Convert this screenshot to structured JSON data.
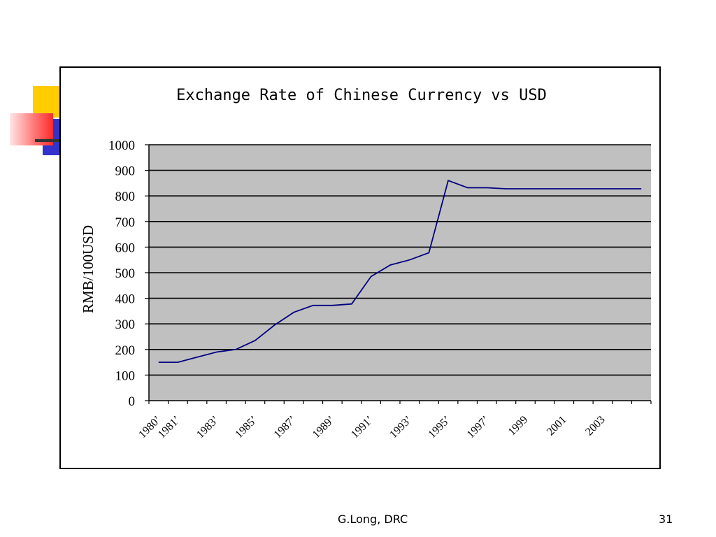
{
  "slide": {
    "footer": "G.Long, DRC",
    "page_number": "31",
    "accent_colors": {
      "yellow": "#FFCC00",
      "blue": "#3333CC",
      "red": "#FF3333"
    }
  },
  "chart_data": {
    "type": "line",
    "title": "Exchange Rate of Chinese Currency vs USD",
    "ylabel": "RMB/100USD",
    "xlabel": "",
    "ylim": [
      0,
      1000
    ],
    "yticks": [
      "0",
      "100",
      "200",
      "300",
      "400",
      "500",
      "600",
      "700",
      "800",
      "900",
      "1000"
    ],
    "x_tick_labels": [
      "1980’",
      "1981’",
      "1983’",
      "1985’",
      "1987’",
      "1989’",
      "1991’",
      "1993’",
      "1995’",
      "1997’",
      "1999",
      "2001",
      "2003"
    ],
    "grid": true,
    "plot_background": "#C0C0C0",
    "line_color": "#000080",
    "series": [
      {
        "values": [
          {
            "x": 1980,
            "y": 150
          },
          {
            "x": 1981,
            "y": 150
          },
          {
            "x": 1982,
            "y": 170
          },
          {
            "x": 1983,
            "y": 190
          },
          {
            "x": 1984,
            "y": 200
          },
          {
            "x": 1985,
            "y": 235
          },
          {
            "x": 1986,
            "y": 295
          },
          {
            "x": 1987,
            "y": 345
          },
          {
            "x": 1988,
            "y": 372
          },
          {
            "x": 1989,
            "y": 372
          },
          {
            "x": 1990,
            "y": 378
          },
          {
            "x": 1991,
            "y": 485
          },
          {
            "x": 1992,
            "y": 530
          },
          {
            "x": 1993,
            "y": 550
          },
          {
            "x": 1994,
            "y": 578
          },
          {
            "x": 1995,
            "y": 860
          },
          {
            "x": 1996,
            "y": 832
          },
          {
            "x": 1997,
            "y": 832
          },
          {
            "x": 1998,
            "y": 828
          },
          {
            "x": 1999,
            "y": 828
          },
          {
            "x": 2000,
            "y": 828
          },
          {
            "x": 2001,
            "y": 828
          },
          {
            "x": 2002,
            "y": 828
          },
          {
            "x": 2003,
            "y": 828
          },
          {
            "x": 2004,
            "y": 828
          },
          {
            "x": 2005,
            "y": 828
          }
        ]
      }
    ]
  }
}
